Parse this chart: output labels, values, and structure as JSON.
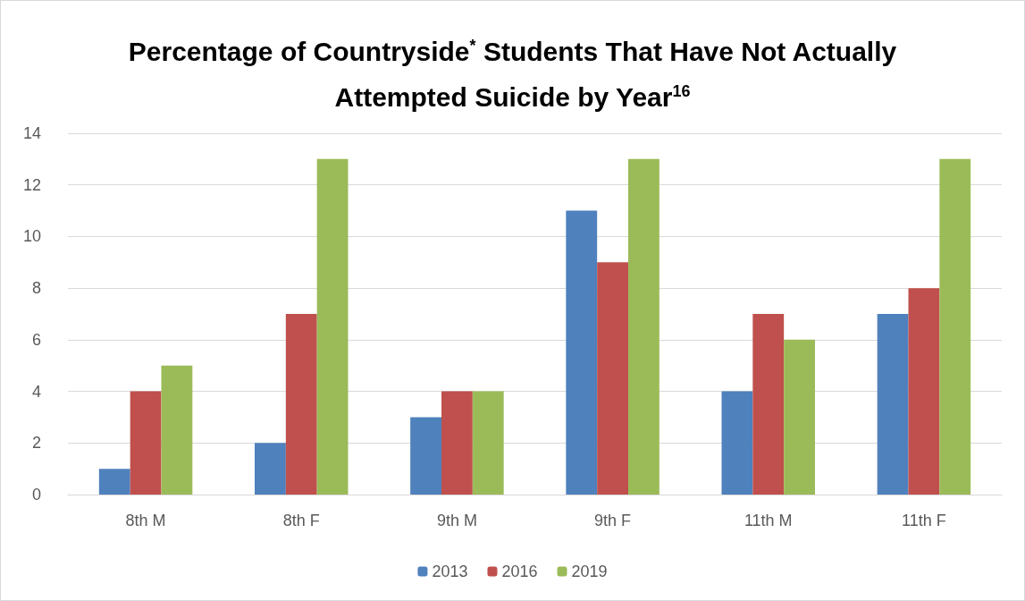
{
  "chart_data": {
    "type": "bar",
    "title": "Percentage of Countryside$^{*}$ Students That Have Not Actually Attempted Suicide by Year$^{16}$",
    "categories": [
      "8th M",
      "8th F",
      "9th M",
      "9th F",
      "11th M",
      "11th F"
    ],
    "series": [
      {
        "name": "2013",
        "color": "#4f81bd",
        "values": [
          1,
          2,
          3,
          11,
          4,
          7
        ]
      },
      {
        "name": "2016",
        "color": "#c0504d",
        "values": [
          4,
          7,
          4,
          9,
          7,
          8
        ]
      },
      {
        "name": "2019",
        "color": "#9bbb59",
        "values": [
          5,
          13,
          4,
          13,
          6,
          13
        ]
      }
    ],
    "ylim": [
      0,
      14
    ],
    "yticks": [
      0,
      2,
      4,
      6,
      8,
      10,
      12,
      14
    ],
    "grid": "y",
    "legend": "bottom"
  }
}
